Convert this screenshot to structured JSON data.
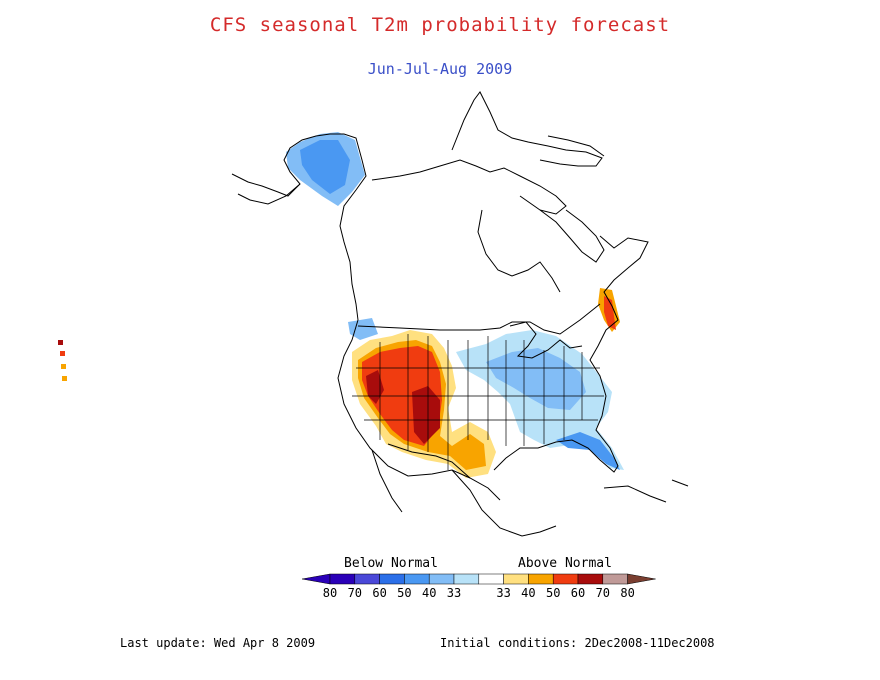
{
  "title": "CFS seasonal T2m probability forecast",
  "subtitle": "Jun-Jul-Aug 2009",
  "legend": {
    "below_label": "Below Normal",
    "above_label": "Above Normal",
    "bins": [
      {
        "label": "80",
        "color": "#2a00b8"
      },
      {
        "label": "70",
        "color": "#4a48d8"
      },
      {
        "label": "60",
        "color": "#2b6fe8"
      },
      {
        "label": "50",
        "color": "#4a98f2"
      },
      {
        "label": "40",
        "color": "#82bdf6"
      },
      {
        "label": "33",
        "color": "#b8e2f8"
      },
      {
        "label": "33",
        "color": "#ffffff"
      },
      {
        "label": "40",
        "color": "#ffe080"
      },
      {
        "label": "50",
        "color": "#f8a400"
      },
      {
        "label": "60",
        "color": "#f03c10"
      },
      {
        "label": "70",
        "color": "#a80c0c"
      },
      {
        "label": "80",
        "color": "#c09a98"
      }
    ],
    "end_low_color": "#2a00b8",
    "end_high_color": "#7a3e30"
  },
  "footer": {
    "last_update": "Last update: Wed Apr 8 2009",
    "initial_conditions": "Initial conditions: 2Dec2008-11Dec2008"
  },
  "colors": {
    "coast": "#000000",
    "blue_light": "#b8e2f8",
    "blue_mid": "#82bdf6",
    "blue_dark": "#4a98f2",
    "yellow": "#ffe080",
    "orange": "#f8a400",
    "red": "#f03c10",
    "darkred": "#a80c0c"
  }
}
